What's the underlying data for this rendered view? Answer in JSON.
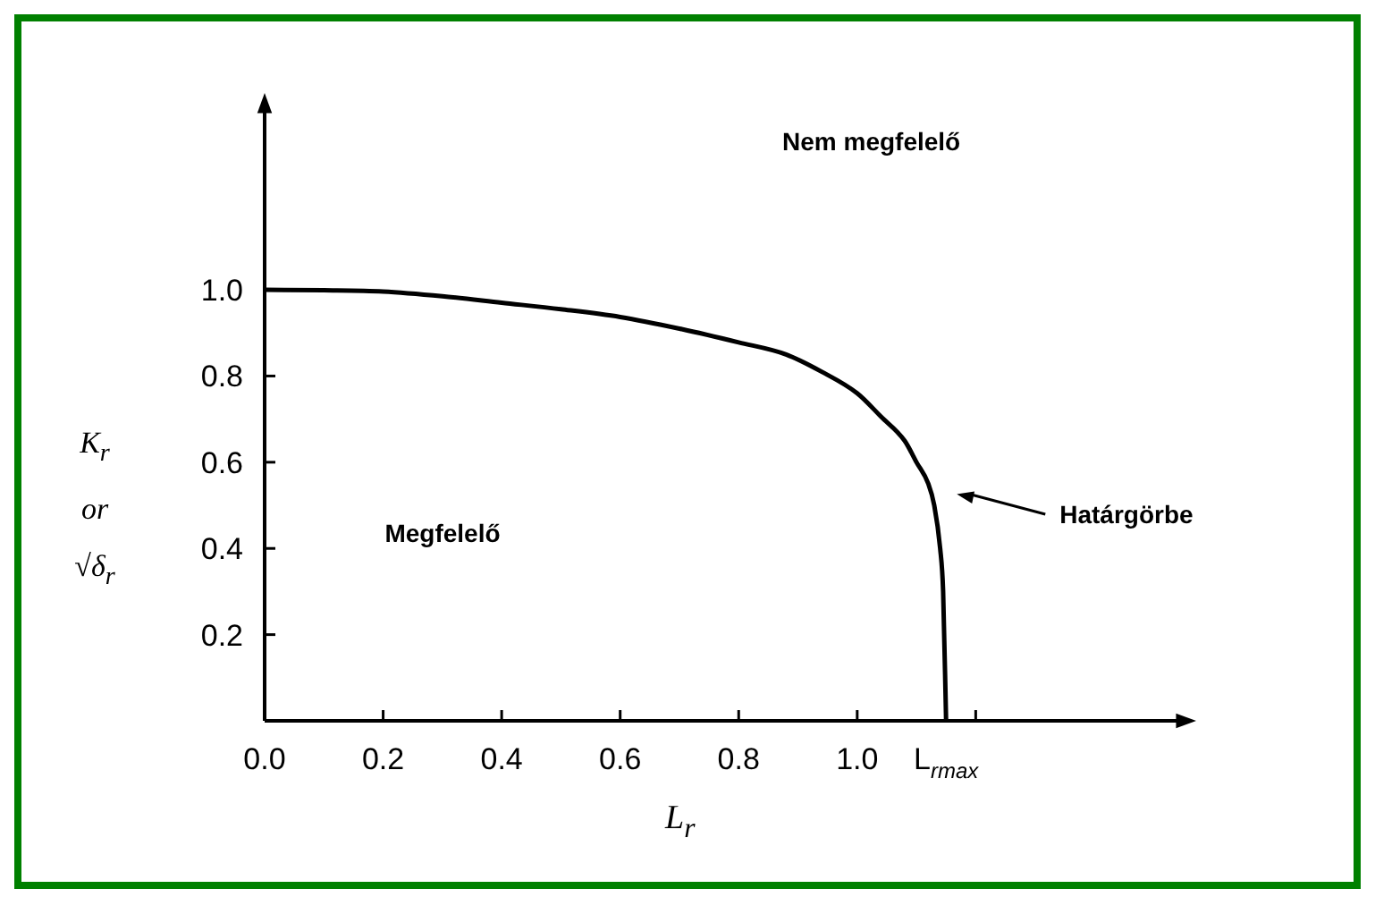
{
  "chart_data": {
    "type": "line",
    "xlabel": "L$_{r}$",
    "ylabel": "K$_{r}$ or √δ$_{r}$",
    "xlim": [
      0,
      1.56
    ],
    "ylim": [
      0,
      1.44
    ],
    "xticks": [
      {
        "value": 0,
        "label": "0.0"
      },
      {
        "value": 0.2,
        "label": "0.2"
      },
      {
        "value": 0.4,
        "label": "0.4"
      },
      {
        "value": 0.6,
        "label": "0.6"
      },
      {
        "value": 0.8,
        "label": "0.8"
      },
      {
        "value": 1.0,
        "label": "1.0"
      },
      {
        "value": 1.15,
        "label": "L$_{rmax}$"
      },
      {
        "value": 1.2,
        "label": null
      }
    ],
    "yticks": [
      0.2,
      0.4,
      0.6,
      0.8,
      {
        "value": 1.0,
        "label": "1.0"
      }
    ],
    "legend": false,
    "series": [
      {
        "color": "#000000",
        "x": [
          0,
          0.1,
          0.2,
          0.3,
          0.4,
          0.5,
          0.6,
          0.7,
          0.8,
          0.88,
          0.94,
          1.0,
          1.04,
          1.08,
          1.1,
          1.12,
          1.13,
          1.14,
          1.145,
          1.15
        ],
        "values": [
          1.0,
          0.999,
          0.996,
          0.985,
          0.97,
          0.955,
          0.937,
          0.91,
          0.878,
          0.85,
          0.81,
          0.76,
          0.706,
          0.65,
          0.6,
          0.55,
          0.5,
          0.4,
          0.3,
          0
        ]
      }
    ],
    "annotations": [
      "Nem megfelelő",
      "Megfelelő",
      "Határgörbe"
    ]
  }
}
